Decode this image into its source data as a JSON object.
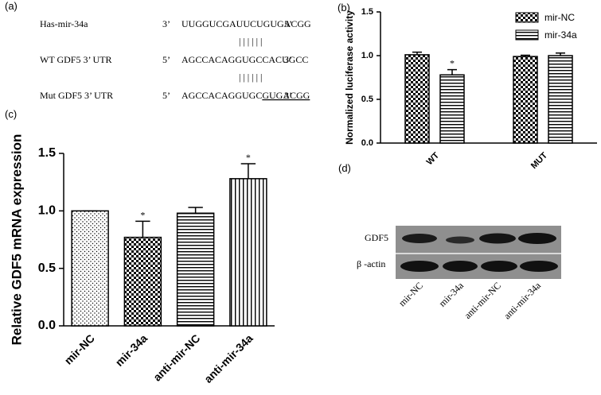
{
  "panel_labels": [
    "(a)",
    "(b)",
    "(c)",
    "(d)"
  ],
  "alignment": {
    "rows": [
      {
        "name": "Has-mir-34a",
        "left": "3’",
        "sequence": "UUGGUCGAUUCUGUGACGG",
        "right": "5’"
      },
      {
        "name": "WT  GDF5 3’ UTR",
        "left": "5’",
        "sequence": "AGCCACAGGUGCCACUGCC",
        "right": "3’"
      },
      {
        "name": "Mut GDF5 3’ UTR",
        "left": "5’",
        "sequence": "AGCCACAGGUGC",
        "underlined": "GUGACGG",
        "right": "3’"
      }
    ],
    "pairing": "||||||"
  },
  "chart_data": [
    {
      "type": "bar",
      "ylabel": "Normalized luciferase activity",
      "categories": [
        "WT",
        "MUT"
      ],
      "series": [
        {
          "name": "mir-NC",
          "color": "#000000",
          "pattern": "checker",
          "values": [
            1.01,
            0.99
          ],
          "errors": [
            0.03,
            0.015
          ]
        },
        {
          "name": "mir-34a",
          "color": "#000000",
          "pattern": "hlines",
          "values": [
            0.78,
            1.0
          ],
          "errors": [
            0.06,
            0.03
          ]
        }
      ],
      "annotations": [
        {
          "text": "*",
          "category": 0,
          "series": 1
        }
      ],
      "ylim": [
        0,
        1.5
      ],
      "yticks": [
        {
          "value": 0,
          "label": "0.0"
        },
        0.5,
        {
          "value": 1,
          "label": "1.0"
        },
        1.5
      ],
      "legend": "top-right"
    },
    {
      "type": "bar",
      "ylabel": "Relative GDF5 mRNA expression",
      "categories": [
        "mir-NC",
        "mir-34a",
        "anti-mir-NC",
        "anti-mir-34a"
      ],
      "values": [
        1.0,
        0.77,
        0.98,
        1.28
      ],
      "errors": [
        0,
        0.14,
        0.05,
        0.13
      ],
      "patterns": [
        "dots",
        "checker",
        "hlines",
        "vlines"
      ],
      "color": "#000000",
      "annotations": [
        {
          "text": "*",
          "category": 1
        },
        {
          "text": "*",
          "category": 3
        }
      ],
      "ylim": [
        0,
        1.5
      ],
      "yticks": [
        {
          "value": 0,
          "label": "0.0"
        },
        0.5,
        {
          "value": 1,
          "label": "1.0"
        },
        1.5
      ]
    }
  ],
  "blot": {
    "rows": [
      "GDF5",
      "β -actin"
    ],
    "lanes": [
      "mir-NC",
      "mir-34a",
      "anti-mir-NC",
      "anti-mir-34a"
    ]
  }
}
